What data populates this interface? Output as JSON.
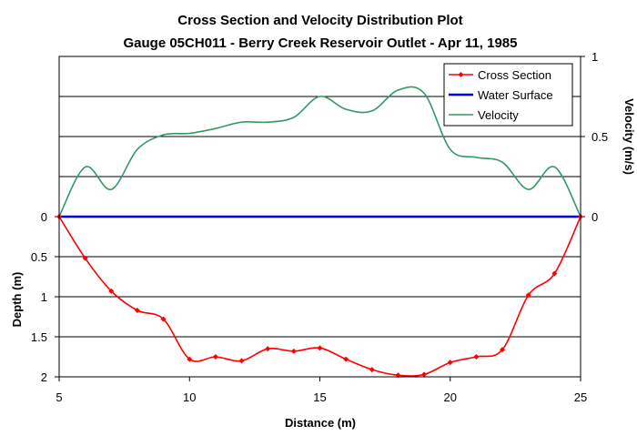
{
  "chart_data": {
    "type": "line",
    "title": "Cross Section and Velocity Distribution Plot",
    "subtitle": "Gauge 05CH011 - Berry Creek Reservoir Outlet - Apr 11, 1985",
    "xlabel": "Distance (m)",
    "ylabel_left": "Depth (m)",
    "ylabel_right": "Velocity (m/s)",
    "xlim": [
      5,
      25
    ],
    "depth_lim": [
      0,
      2
    ],
    "velocity_lim": [
      0,
      1
    ],
    "x_ticks": [
      "5",
      "10",
      "15",
      "20",
      "25"
    ],
    "depth_ticks": [
      "0",
      "0.5",
      "1",
      "1.5",
      "2"
    ],
    "velocity_ticks": [
      "0",
      "0.5",
      "1"
    ],
    "grid": true,
    "legend_position": "top-right",
    "colors": {
      "cross_section": "#ff0000",
      "water_surface": "#0000ff",
      "velocity": "#339966",
      "grid": "#000000"
    },
    "series": [
      {
        "name": "Cross Section",
        "axis": "depth",
        "marker": "diamond",
        "x": [
          5,
          6,
          7,
          8,
          9,
          10,
          11,
          12,
          13,
          14,
          15,
          16,
          17,
          18,
          19,
          20,
          21,
          22,
          23,
          24,
          25
        ],
        "y": [
          0,
          0.52,
          0.93,
          1.17,
          1.28,
          1.78,
          1.75,
          1.8,
          1.65,
          1.68,
          1.64,
          1.78,
          1.91,
          1.98,
          1.97,
          1.82,
          1.75,
          1.66,
          0.98,
          0.71,
          0
        ]
      },
      {
        "name": "Water Surface",
        "axis": "depth",
        "x": [
          5,
          25
        ],
        "y": [
          0,
          0
        ]
      },
      {
        "name": "Velocity",
        "axis": "velocity",
        "x": [
          5,
          6,
          7,
          8,
          9,
          10,
          11,
          12,
          13,
          14,
          15,
          16,
          17,
          18,
          19,
          20,
          21,
          22,
          23,
          24,
          25
        ],
        "y": [
          0,
          0.31,
          0.17,
          0.42,
          0.51,
          0.52,
          0.55,
          0.59,
          0.59,
          0.62,
          0.75,
          0.67,
          0.66,
          0.79,
          0.77,
          0.42,
          0.37,
          0.34,
          0.17,
          0.31,
          0
        ]
      }
    ]
  }
}
